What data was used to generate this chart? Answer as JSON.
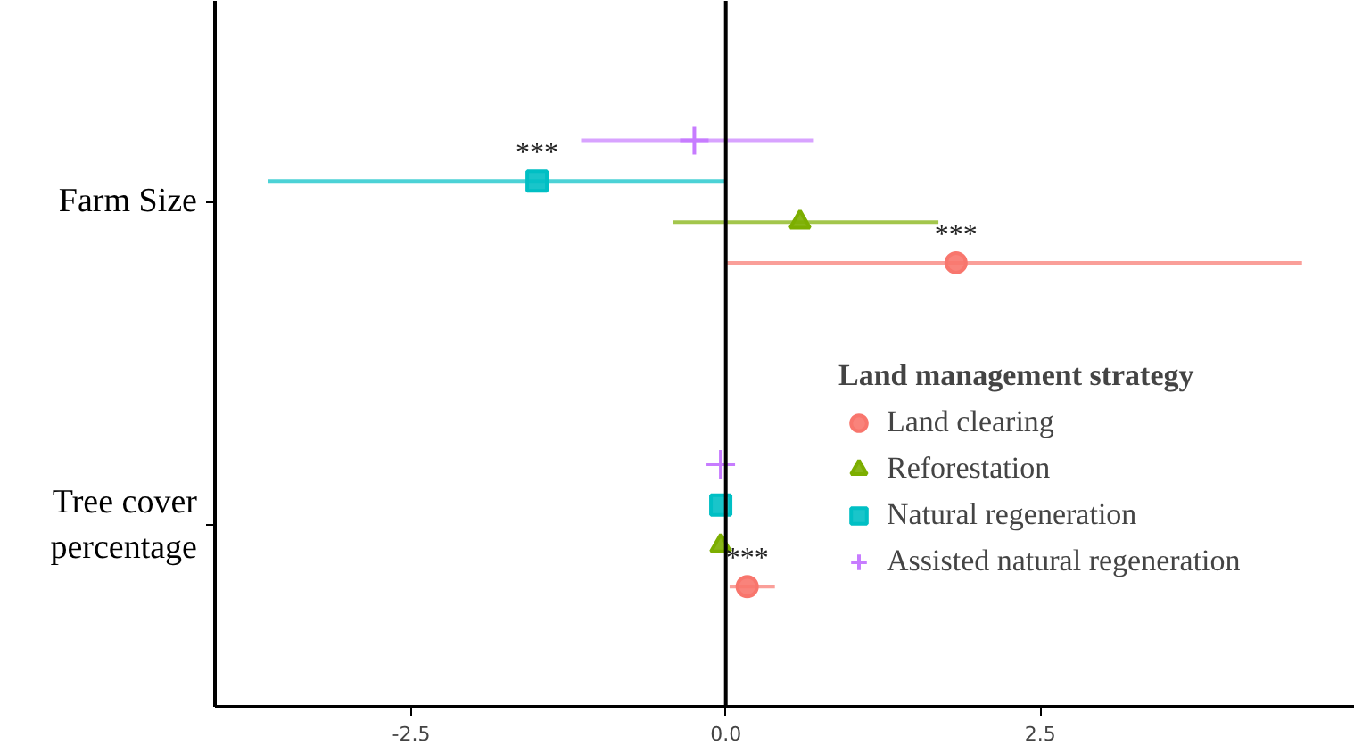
{
  "chart_data": {
    "type": "scatter",
    "orientation": "horizontal",
    "categories": [
      "Farm Size",
      "Tree cover percentage"
    ],
    "legend_title": "Land management strategy",
    "legend": "right",
    "grid": false,
    "xlim": [
      -4.06,
      5.0
    ],
    "xticks": [
      {
        "value": -2.5,
        "label": "-2.5"
      },
      {
        "value": 0,
        "label": "0.0"
      },
      {
        "value": 2.5,
        "label": "2.5"
      }
    ],
    "series": [
      {
        "name": "Land clearing",
        "color": "#f8766d",
        "marker": "circle",
        "values": [
          1.83,
          0.17
        ],
        "value_labels": [
          "***",
          "***"
        ],
        "errors": [
          [
            0.01,
            4.58
          ],
          [
            0.03,
            0.39
          ]
        ]
      },
      {
        "name": "Reforestation",
        "color": "#7cae00",
        "marker": "triangle",
        "values": [
          0.59,
          -0.04
        ],
        "errors": [
          [
            -0.42,
            1.69
          ],
          null
        ]
      },
      {
        "name": "Natural regeneration",
        "color": "#00bfc4",
        "marker": "square",
        "values": [
          -1.5,
          -0.04
        ],
        "value_labels": [
          "***",
          null
        ],
        "errors": [
          [
            -3.64,
            0.0
          ],
          null
        ]
      },
      {
        "name": "Assisted natural regeneration",
        "color": "#c77cff",
        "marker": "cross",
        "values": [
          -0.25,
          -0.04
        ],
        "errors": [
          [
            -1.15,
            0.7
          ],
          null
        ]
      }
    ],
    "ref_lines": [
      {
        "axis": "x",
        "value": 0,
        "color": "#000000"
      }
    ]
  }
}
